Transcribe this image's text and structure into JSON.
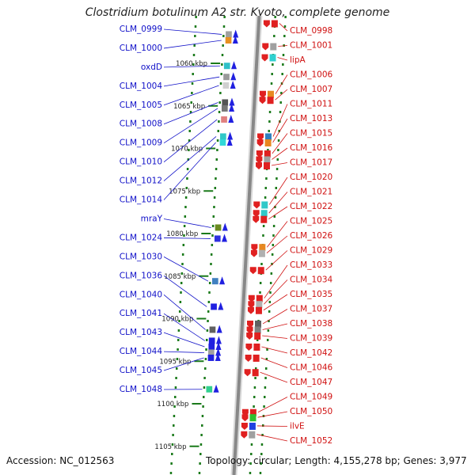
{
  "title": "Clostridium botulinum A2 str. Kyoto, complete genome",
  "footer": {
    "accession": "Accession: NC_012563",
    "topology": "Topology: circular; Length: 4,155,278 bp; Genes: 3,977"
  },
  "colors": {
    "left_labels": "#1010c8",
    "right_labels": "#d01010",
    "scale_ticks": "#1a7a1a",
    "backbone": "#888888"
  },
  "scale": {
    "unit": "kbp",
    "ticks": [
      {
        "kbp": 1060,
        "label": "1060 kbp"
      },
      {
        "kbp": 1065,
        "label": "1065 kbp"
      },
      {
        "kbp": 1070,
        "label": "1070 kbp"
      },
      {
        "kbp": 1075,
        "label": "1075 kbp"
      },
      {
        "kbp": 1080,
        "label": "1080 kbp"
      },
      {
        "kbp": 1085,
        "label": "1085 kbp"
      },
      {
        "kbp": 1090,
        "label": "1090 kbp"
      },
      {
        "kbp": 1095,
        "label": "1095 kbp"
      },
      {
        "kbp": 1100,
        "label": "1100 kbp"
      },
      {
        "kbp": 1105,
        "label": "1105 kbp"
      }
    ]
  },
  "left_genes": [
    {
      "label": "CLM_0999",
      "kbp": 1056.6,
      "color": "#a0a0a0"
    },
    {
      "label": "CLM_1000",
      "kbp": 1057.3,
      "color": "#e89020"
    },
    {
      "label": "oxdD",
      "kbp": 1060.3,
      "color": "#30c0c8"
    },
    {
      "label": "CLM_1004",
      "kbp": 1061.6,
      "color": "#9a9a9a"
    },
    {
      "label": "CLM_1005",
      "kbp": 1062.6,
      "color": "#d0d0d0"
    },
    {
      "label": "CLM_1008",
      "kbp": 1064.6,
      "color": "#555555"
    },
    {
      "label": "CLM_1009",
      "kbp": 1065.3,
      "color": "#777777"
    },
    {
      "label": "CLM_1010",
      "kbp": 1066.6,
      "color": "#e08080"
    },
    {
      "label": "CLM_1012",
      "kbp": 1068.6,
      "color": "#30c8c8"
    },
    {
      "label": "CLM_1014",
      "kbp": 1069.3,
      "color": "#30d8d8"
    },
    {
      "label": "mraY",
      "kbp": 1079.3,
      "color": "#6a8a20"
    },
    {
      "label": "CLM_1024",
      "kbp": 1080.6,
      "color": "#3030e0"
    },
    {
      "label": "CLM_1030",
      "kbp": 1085.6,
      "color": "#4080c0"
    },
    {
      "label": "CLM_1036",
      "kbp": 1088.6,
      "color": "#2020e0"
    },
    {
      "label": "CLM_1040",
      "kbp": 1091.3,
      "color": "#606060"
    },
    {
      "label": "CLM_1041",
      "kbp": 1092.6,
      "color": "#2020e0"
    },
    {
      "label": "CLM_1043",
      "kbp": 1093.3,
      "color": "#2020e0"
    },
    {
      "label": "CLM_1044",
      "kbp": 1094.0,
      "color": "#a0a0a0"
    },
    {
      "label": "CLM_1045",
      "kbp": 1094.6,
      "color": "#2020e0"
    },
    {
      "label": "CLM_1048",
      "kbp": 1098.3,
      "color": "#30d090"
    }
  ],
  "right_genes": [
    {
      "label": "CLM_0998",
      "kbp": 1055.3,
      "color": "#e02020"
    },
    {
      "label": "CLM_1001",
      "kbp": 1058.0,
      "color": "#a0a0a0"
    },
    {
      "label": "lipA",
      "kbp": 1059.3,
      "color": "#30d0d0"
    },
    {
      "label": "CLM_1006",
      "kbp": 1063.6,
      "color": "#e88820"
    },
    {
      "label": "CLM_1007",
      "kbp": 1064.3,
      "color": "#e02020"
    },
    {
      "label": "CLM_1011",
      "kbp": 1068.6,
      "color": "#3080c0"
    },
    {
      "label": "CLM_1013",
      "kbp": 1069.3,
      "color": "#e88820"
    },
    {
      "label": "CLM_1015",
      "kbp": 1070.6,
      "color": "#e02020"
    },
    {
      "label": "CLM_1016",
      "kbp": 1071.3,
      "color": "#a0a0a0"
    },
    {
      "label": "CLM_1017",
      "kbp": 1072.0,
      "color": "#e02020"
    },
    {
      "label": "CLM_1020",
      "kbp": 1076.6,
      "color": "#30c8c8"
    },
    {
      "label": "CLM_1021",
      "kbp": 1077.6,
      "color": "#30c8c8"
    },
    {
      "label": "CLM_1022",
      "kbp": 1078.3,
      "color": "#e02020"
    },
    {
      "label": "CLM_1025",
      "kbp": 1081.6,
      "color": "#e88820"
    },
    {
      "label": "CLM_1026",
      "kbp": 1082.3,
      "color": "#b0b0b0"
    },
    {
      "label": "CLM_1029",
      "kbp": 1084.3,
      "color": "#e02020"
    },
    {
      "label": "CLM_1033",
      "kbp": 1087.6,
      "color": "#e02020"
    },
    {
      "label": "CLM_1034",
      "kbp": 1088.3,
      "color": "#b0b0b0"
    },
    {
      "label": "CLM_1035",
      "kbp": 1089.0,
      "color": "#e02020"
    },
    {
      "label": "CLM_1037",
      "kbp": 1090.6,
      "color": "#606060"
    },
    {
      "label": "CLM_1038",
      "kbp": 1091.3,
      "color": "#808080"
    },
    {
      "label": "CLM_1039",
      "kbp": 1092.0,
      "color": "#e02020"
    },
    {
      "label": "CLM_1042",
      "kbp": 1093.3,
      "color": "#e02020"
    },
    {
      "label": "CLM_1046",
      "kbp": 1094.6,
      "color": "#e02020"
    },
    {
      "label": "CLM_1047",
      "kbp": 1096.3,
      "color": "#e02020"
    },
    {
      "label": "CLM_1049",
      "kbp": 1101.0,
      "color": "#e02020"
    },
    {
      "label": "CLM_1050",
      "kbp": 1101.6,
      "color": "#30c030"
    },
    {
      "label": "ilvE",
      "kbp": 1102.6,
      "color": "#2040e0"
    },
    {
      "label": "CLM_1052",
      "kbp": 1103.6,
      "color": "#a0a0a0"
    }
  ]
}
